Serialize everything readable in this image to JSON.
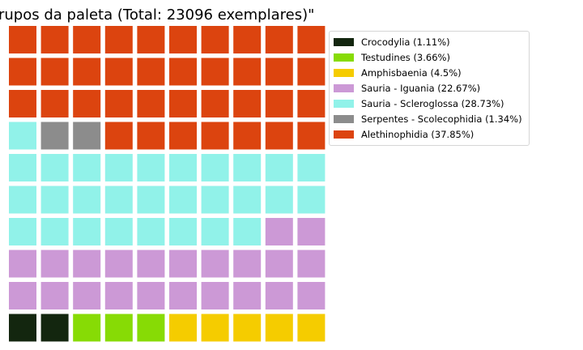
{
  "chart_data": {
    "type": "waffle",
    "title": "rupos da paleta (Total: 23096 exemplares)\"",
    "rows": 10,
    "columns": 10,
    "total": 23096,
    "legend_position": "upper-right",
    "categories": [
      {
        "name": "Crocodylia",
        "label": "Crocodylia (1.11%)",
        "percent": 1.11,
        "squares": 2,
        "color": "#13260f"
      },
      {
        "name": "Testudines",
        "label": "Testudines (3.66%)",
        "percent": 3.66,
        "squares": 3,
        "color": "#87db05"
      },
      {
        "name": "Amphisbaenia",
        "label": "Amphisbaenia (4.5%)",
        "percent": 4.5,
        "squares": 5,
        "color": "#f5cc00"
      },
      {
        "name": "Sauria - Iguania",
        "label": "Sauria - Iguania (22.67%)",
        "percent": 22.67,
        "squares": 22,
        "color": "#cc99d6"
      },
      {
        "name": "Sauria - Scleroglossa",
        "label": "Sauria - Scleroglossa (28.73%)",
        "percent": 28.73,
        "squares": 29,
        "color": "#91f2e9"
      },
      {
        "name": "Serpentes - Scolecophidia",
        "label": "Serpentes - Scolecophidia (1.34%)",
        "percent": 1.34,
        "squares": 2,
        "color": "#8c8c8c"
      },
      {
        "name": "Alethinophidia",
        "label": "Alethinophidia (37.85%)",
        "percent": 37.85,
        "squares": 37,
        "color": "#dc440f"
      }
    ]
  }
}
